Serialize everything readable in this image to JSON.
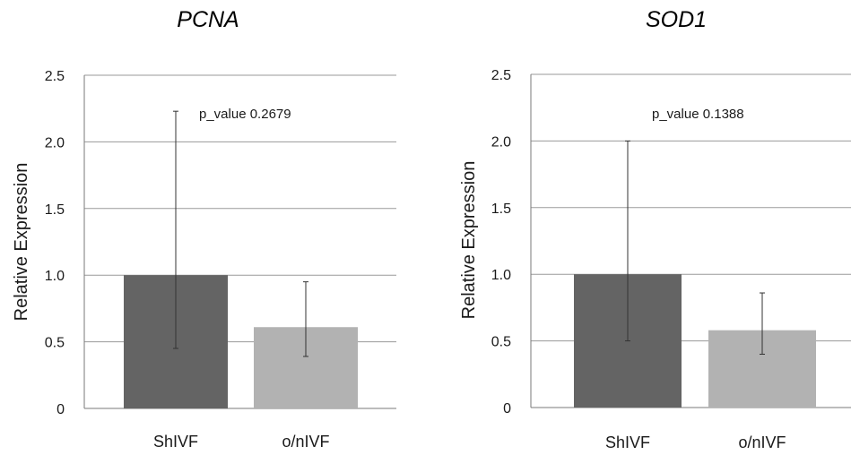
{
  "chart_data": [
    {
      "type": "bar",
      "title": "PCNA",
      "ylabel": "Relative Expression",
      "xlabel": "",
      "ylim": [
        0,
        2.5
      ],
      "yticks": [
        "0",
        "0.5",
        "1.0",
        "1.5",
        "2.0",
        "2.5"
      ],
      "grid": true,
      "annotation": "p_value 0.2679",
      "categories": [
        "ShIVF",
        "o/nIVF"
      ],
      "values": [
        1.0,
        0.61
      ],
      "error_low": [
        0.45,
        0.39
      ],
      "error_high": [
        2.23,
        0.95
      ],
      "colors": [
        "#646464",
        "#b2b2b2"
      ]
    },
    {
      "type": "bar",
      "title": "SOD1",
      "ylabel": "Relative Expression",
      "xlabel": "",
      "ylim": [
        0,
        2.5
      ],
      "yticks": [
        "0",
        "0.5",
        "1.0",
        "1.5",
        "2.0",
        "2.5"
      ],
      "grid": true,
      "annotation": "p_value 0.1388",
      "categories": [
        "ShIVF",
        "o/nIVF"
      ],
      "values": [
        1.0,
        0.58
      ],
      "error_low": [
        0.5,
        0.4
      ],
      "error_high": [
        2.0,
        0.86
      ],
      "colors": [
        "#646464",
        "#b2b2b2"
      ]
    }
  ]
}
